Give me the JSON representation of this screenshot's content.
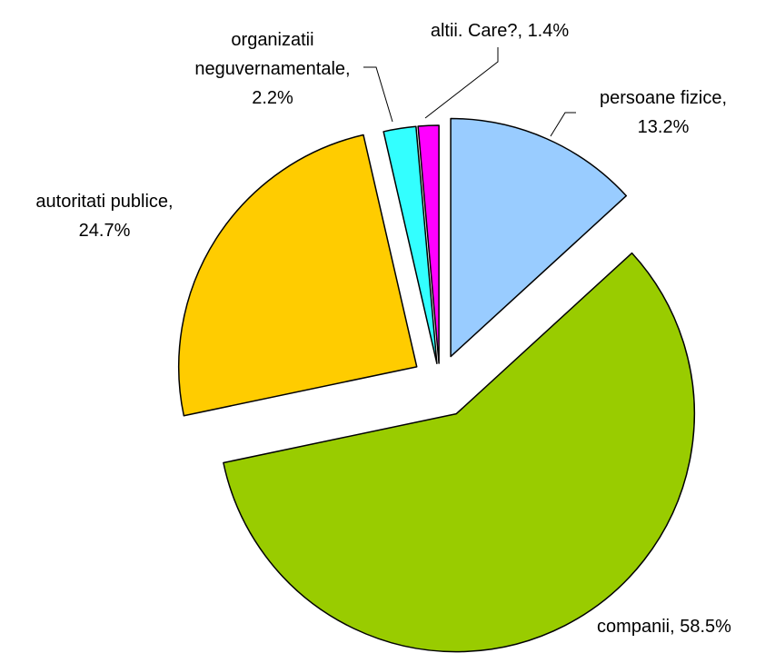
{
  "chart_data": {
    "type": "pie",
    "categories": [
      "persoane fizice,",
      "companii,",
      "autoritati publice,",
      "organizatii neguvernamentale,",
      "altii. Care?,"
    ],
    "values": [
      13.2,
      58.5,
      24.7,
      2.2,
      1.4
    ],
    "value_labels": [
      "13.2%",
      "58.5%",
      "24.7%",
      "2.2%",
      "1.4%"
    ],
    "colors": [
      "#99ccff",
      "#99cc00",
      "#ffcc00",
      "#33ffff",
      "#ff00ff"
    ],
    "start_angle": 0,
    "direction": "clockwise",
    "legend": false
  }
}
